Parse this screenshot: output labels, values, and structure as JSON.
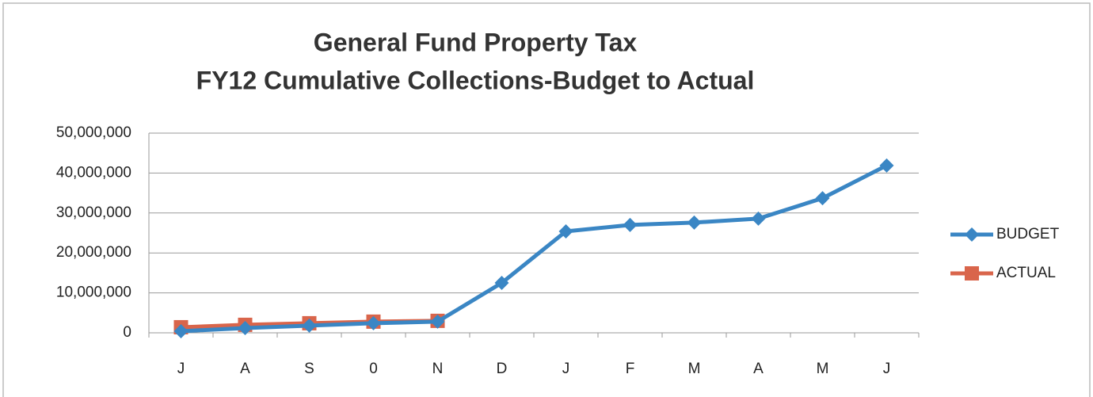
{
  "chart_data": {
    "type": "line",
    "title": [
      "General Fund Property Tax",
      "FY12 Cumulative Collections-Budget to Actual"
    ],
    "categories": [
      "J",
      "A",
      "S",
      "0",
      "N",
      "D",
      "J",
      "F",
      "M",
      "A",
      "M",
      "J"
    ],
    "series": [
      {
        "name": "BUDGET",
        "color": "#3a86c4",
        "marker": "diamond",
        "values": [
          400000,
          1200000,
          1800000,
          2400000,
          2800000,
          12500000,
          25400000,
          27000000,
          27600000,
          28600000,
          33700000,
          41900000
        ]
      },
      {
        "name": "ACTUAL",
        "color": "#d9654b",
        "marker": "square",
        "values": [
          1400000,
          2000000,
          2400000,
          2800000,
          3000000,
          null,
          null,
          null,
          null,
          null,
          null,
          null
        ]
      }
    ],
    "ylim": [
      0,
      50000000
    ],
    "yticks": [
      0,
      {
        "value": 10000000,
        "label": "10,000,000"
      },
      {
        "value": 20000000,
        "label": "20,000,000"
      },
      {
        "value": 30000000,
        "label": "30,000,000"
      },
      {
        "value": 40000000,
        "label": "40,000,000"
      },
      {
        "value": 50000000,
        "label": "50,000,000"
      }
    ],
    "grid": true,
    "legend": "right"
  }
}
